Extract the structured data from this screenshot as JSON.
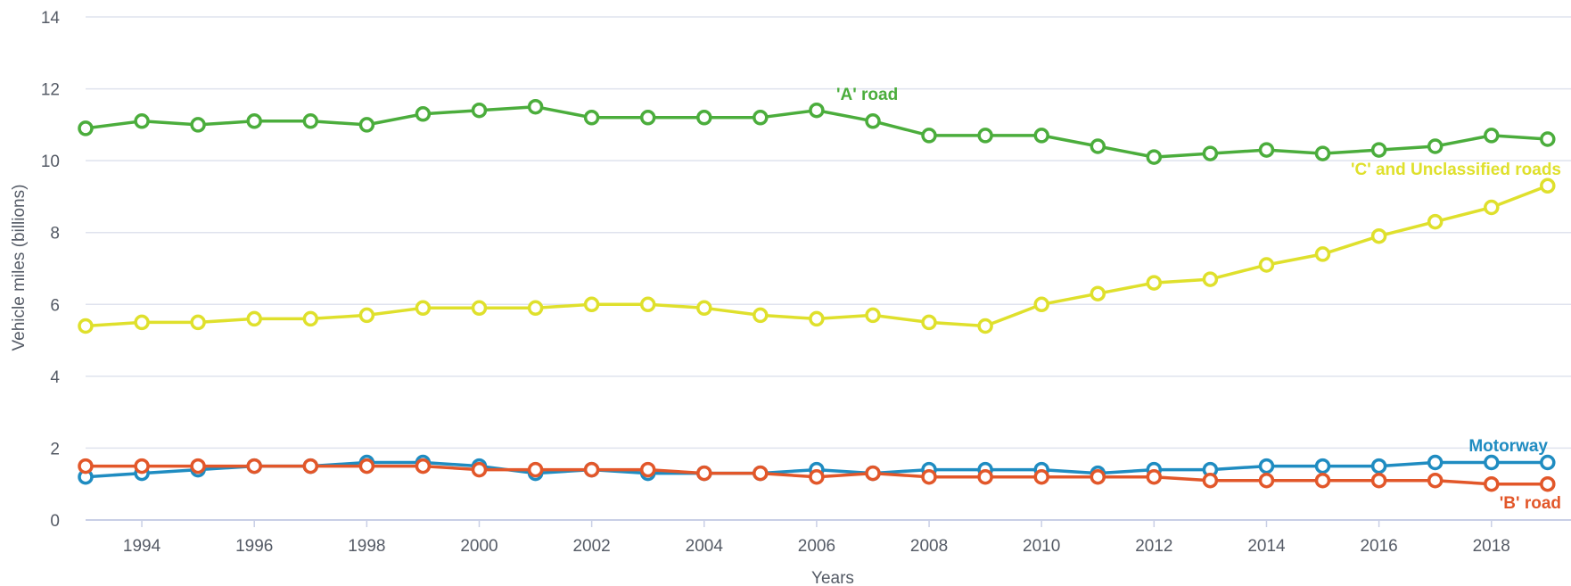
{
  "chart_data": {
    "type": "line",
    "xlabel": "Years",
    "ylabel": "Vehicle miles (billions)",
    "xlim": [
      1993,
      2019
    ],
    "ylim": [
      0,
      14
    ],
    "x_ticks": [
      1994,
      1996,
      1998,
      2000,
      2002,
      2004,
      2006,
      2008,
      2010,
      2012,
      2014,
      2016,
      2018
    ],
    "y_ticks": [
      0,
      2,
      4,
      6,
      8,
      10,
      12,
      14
    ],
    "grid": "horizontal",
    "x": [
      1993,
      1994,
      1995,
      1996,
      1997,
      1998,
      1999,
      2000,
      2001,
      2002,
      2003,
      2004,
      2005,
      2006,
      2007,
      2008,
      2009,
      2010,
      2011,
      2012,
      2013,
      2014,
      2015,
      2016,
      2017,
      2018,
      2019
    ],
    "series": [
      {
        "name": "'A' road",
        "color": "#4bad3c",
        "values": [
          10.9,
          11.1,
          11.0,
          11.1,
          11.1,
          11.0,
          11.3,
          11.4,
          11.5,
          11.2,
          11.2,
          11.2,
          11.2,
          11.4,
          11.1,
          10.7,
          10.7,
          10.7,
          10.4,
          10.1,
          10.2,
          10.3,
          10.2,
          10.3,
          10.4,
          10.7,
          10.6
        ]
      },
      {
        "name": "'C' and Unclassified roads",
        "color": "#dfe02c",
        "values": [
          5.4,
          5.5,
          5.5,
          5.6,
          5.6,
          5.7,
          5.9,
          5.9,
          5.9,
          6.0,
          6.0,
          5.9,
          5.7,
          5.6,
          5.7,
          5.5,
          5.4,
          6.0,
          6.3,
          6.6,
          6.7,
          7.1,
          7.4,
          7.9,
          8.3,
          8.7,
          9.3
        ]
      },
      {
        "name": "Motorway",
        "color": "#1f8cc1",
        "values": [
          1.2,
          1.3,
          1.4,
          1.5,
          1.5,
          1.6,
          1.6,
          1.5,
          1.3,
          1.4,
          1.3,
          1.3,
          1.3,
          1.4,
          1.3,
          1.4,
          1.4,
          1.4,
          1.3,
          1.4,
          1.4,
          1.5,
          1.5,
          1.5,
          1.6,
          1.6,
          1.6
        ]
      },
      {
        "name": "'B' road",
        "color": "#e2572a",
        "values": [
          1.5,
          1.5,
          1.5,
          1.5,
          1.5,
          1.5,
          1.5,
          1.4,
          1.4,
          1.4,
          1.4,
          1.3,
          1.3,
          1.2,
          1.3,
          1.2,
          1.2,
          1.2,
          1.2,
          1.2,
          1.1,
          1.1,
          1.1,
          1.1,
          1.1,
          1.0,
          1.0
        ]
      }
    ]
  }
}
